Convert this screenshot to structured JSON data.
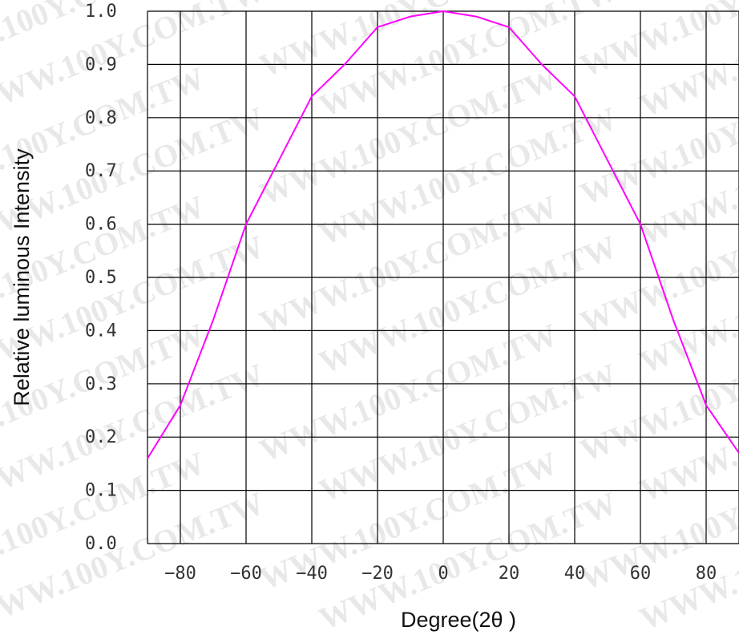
{
  "chart_data": {
    "type": "line",
    "xlabel": "Degree(2θ  )",
    "ylabel": "Relative luminous Intensity",
    "xlim": [
      -90,
      90
    ],
    "ylim": [
      0,
      1.0
    ],
    "x_ticks": [
      -80,
      -60,
      -40,
      -20,
      0,
      20,
      40,
      60,
      80
    ],
    "x_tick_labels": [
      "−80",
      "−60",
      "−40",
      "−20",
      "0",
      "20",
      "40",
      "60",
      "80"
    ],
    "y_ticks": [
      0,
      0.1,
      0.2,
      0.3,
      0.4,
      0.5,
      0.6,
      0.7,
      0.8,
      0.9,
      1.0
    ],
    "y_tick_labels": [
      "0.0",
      "0.1",
      "0.2",
      "0.3",
      "0.4",
      "0.5",
      "0.6",
      "0.7",
      "0.8",
      "0.9",
      "1.0"
    ],
    "x_grid_lines": [
      -90,
      -80,
      -60,
      -40,
      -20,
      0,
      20,
      40,
      60,
      80,
      90
    ],
    "grid": true,
    "line_color": "#ff00ff",
    "watermark": "WWW.100Y.COM.TW",
    "series": [
      {
        "x": [
          -90,
          -80,
          -70,
          -60,
          -50,
          -40,
          -30,
          -20,
          -10,
          0,
          10,
          20,
          30,
          40,
          50,
          60,
          70,
          80,
          90
        ],
        "y": [
          0.16,
          0.26,
          0.42,
          0.6,
          0.72,
          0.84,
          0.9,
          0.97,
          0.99,
          1.0,
          0.99,
          0.97,
          0.9,
          0.84,
          0.72,
          0.6,
          0.42,
          0.26,
          0.17
        ]
      }
    ]
  }
}
